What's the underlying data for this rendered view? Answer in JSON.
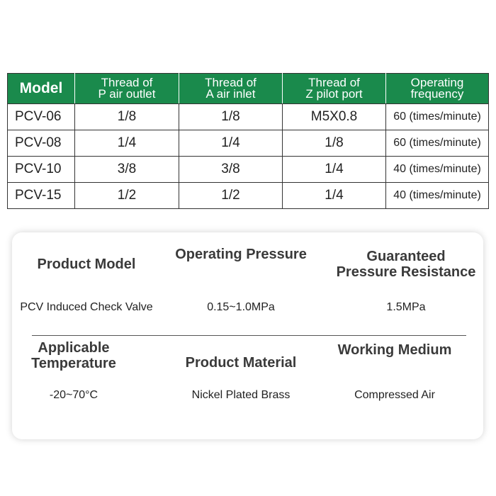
{
  "table": {
    "header": [
      "Model",
      "Thread of\nP air outlet",
      "Thread of\nA air inlet",
      "Thread of\nZ pilot port",
      "Operating\nfrequency"
    ],
    "rows": [
      [
        "PCV-06",
        "1/8",
        "1/8",
        "M5X0.8",
        "60 (times/minute)"
      ],
      [
        "PCV-08",
        "1/4",
        "1/4",
        "1/8",
        "60 (times/minute)"
      ],
      [
        "PCV-10",
        "3/8",
        "3/8",
        "1/4",
        "40 (times/minute)"
      ],
      [
        "PCV-15",
        "1/2",
        "1/2",
        "1/4",
        "40 (times/minute)"
      ]
    ]
  },
  "specs": [
    {
      "label": "Product Model",
      "value": "PCV Induced Check Valve"
    },
    {
      "label": "Operating Pressure",
      "value": "0.15~1.0MPa"
    },
    {
      "label": "Guaranteed\nPressure Resistance",
      "value": "1.5MPa"
    },
    {
      "label": "Applicable\nTemperature",
      "value": "-20~70°C"
    },
    {
      "label": "Product Material",
      "value": "Nickel Plated Brass"
    },
    {
      "label": "Working Medium",
      "value": "Compressed Air"
    }
  ]
}
